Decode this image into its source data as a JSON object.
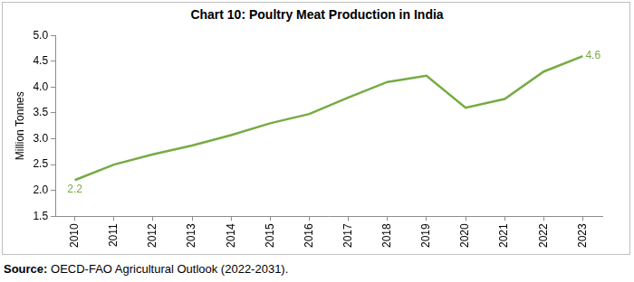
{
  "chart_data": {
    "type": "line",
    "title": "Chart 10: Poultry Meat Production in India",
    "y_label": "Million Tonnes",
    "source": "Source: OECD-FAO Agricultural Outlook (2022-2031).",
    "categories": [
      "2010",
      "2011",
      "2012",
      "2013",
      "2014",
      "2015",
      "2016",
      "2017",
      "2018",
      "2019",
      "2020",
      "2021",
      "2022",
      "2023"
    ],
    "values": [
      2.2,
      2.5,
      2.7,
      2.87,
      3.07,
      3.3,
      3.48,
      3.8,
      4.1,
      4.22,
      3.6,
      3.77,
      4.3,
      4.6
    ],
    "value_labels": [
      "2.2",
      null,
      null,
      null,
      null,
      null,
      null,
      null,
      null,
      null,
      null,
      null,
      null,
      "4.6"
    ],
    "color": "#77ab43",
    "ylim": [
      1.5,
      5.0
    ],
    "yticks": [
      1.5,
      {
        "value": 2,
        "label": "2.0"
      },
      2.5,
      {
        "value": 3,
        "label": "3.0"
      },
      3.5,
      {
        "value": 4,
        "label": "4.0"
      },
      4.5,
      {
        "value": 5,
        "label": "5.0"
      }
    ],
    "grid": false
  }
}
